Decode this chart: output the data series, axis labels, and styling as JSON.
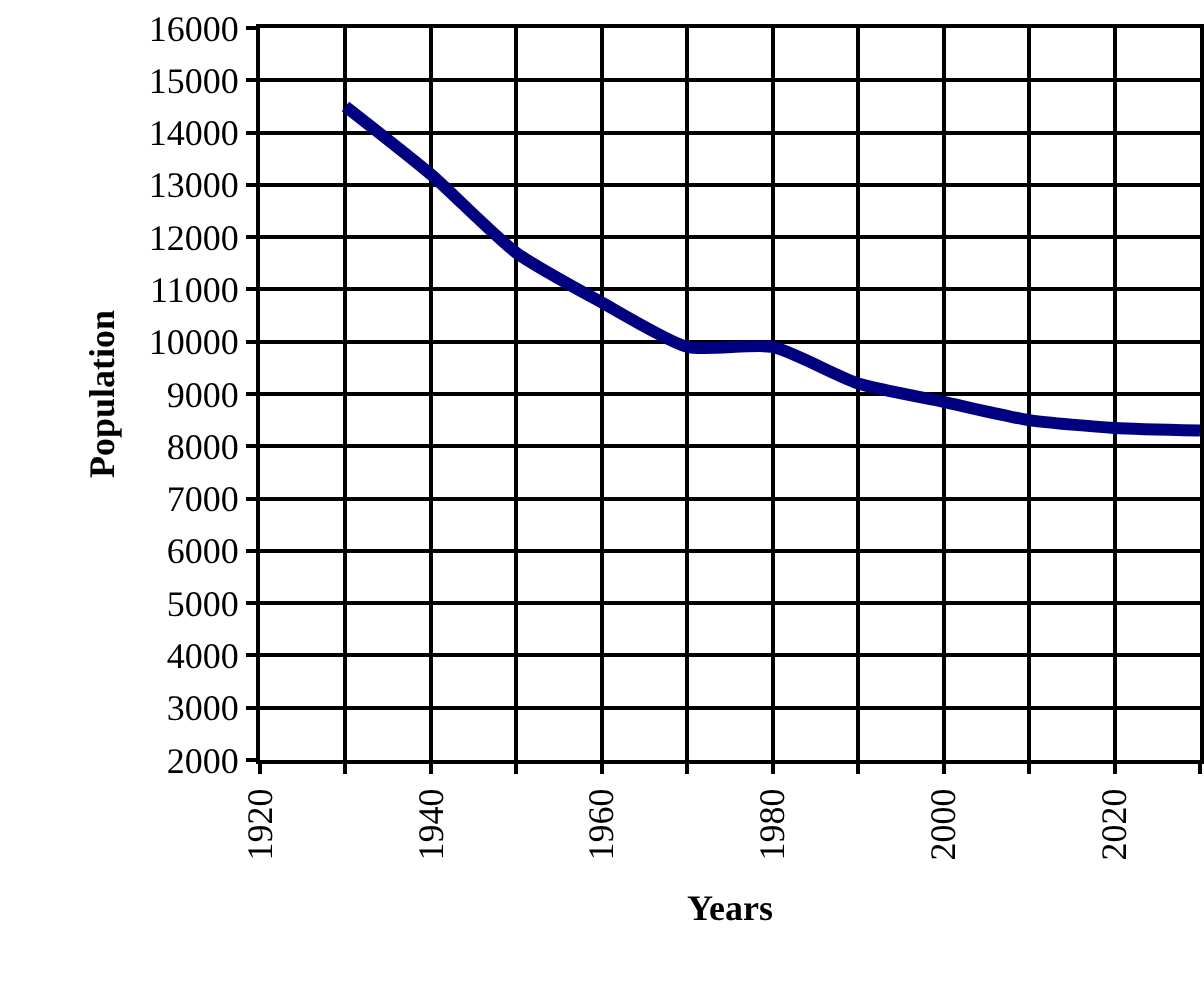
{
  "chart_data": {
    "type": "line",
    "xlabel": "Years",
    "ylabel": "Population",
    "x": [
      1930,
      1940,
      1950,
      1960,
      1970,
      1980,
      1990,
      2000,
      2010,
      2020,
      2030
    ],
    "series": [
      {
        "color": "#000080",
        "values": [
          14500,
          13200,
          11700,
          10750,
          9900,
          9900,
          9200,
          8850,
          8500,
          8350,
          8300
        ]
      }
    ],
    "xlim": [
      1920,
      2030
    ],
    "xticks": [
      1920,
      {
        "value": 1930,
        "label": null
      },
      1940,
      {
        "value": 1950,
        "label": null
      },
      1960,
      {
        "value": 1970,
        "label": null
      },
      1980,
      {
        "value": 1990,
        "label": null
      },
      2000,
      {
        "value": 2010,
        "label": null
      },
      2020,
      {
        "value": 2030,
        "label": null
      }
    ],
    "ylim": [
      2000,
      16000
    ],
    "yticks": [
      2000,
      3000,
      4000,
      5000,
      6000,
      7000,
      8000,
      9000,
      10000,
      11000,
      12000,
      13000,
      14000,
      15000,
      16000
    ],
    "grid": true,
    "marker": "none",
    "line_style": "solid"
  }
}
